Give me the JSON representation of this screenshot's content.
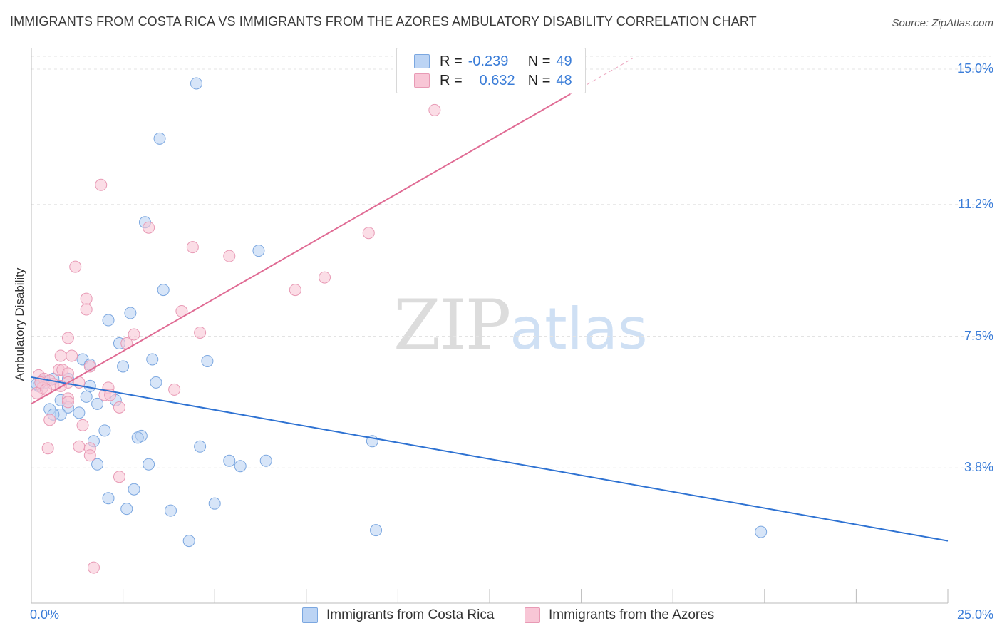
{
  "title": "IMMIGRANTS FROM COSTA RICA VS IMMIGRANTS FROM THE AZORES AMBULATORY DISABILITY CORRELATION CHART",
  "source": "Source: ZipAtlas.com",
  "watermark": {
    "zip": "ZIP",
    "atlas": "atlas"
  },
  "legend_top": {
    "rows": [
      {
        "r_label": "R = ",
        "r_value": "-0.239",
        "n_label": "N = ",
        "n_value": "49"
      },
      {
        "r_label": "R = ",
        "r_value": "0.632",
        "n_label": "N = ",
        "n_value": "48"
      }
    ]
  },
  "colors": {
    "blue_fill": "#bcd4f4",
    "blue_stroke": "#7ba7e0",
    "blue_line": "#2e72d2",
    "pink_fill": "#f8c6d6",
    "pink_stroke": "#e89ab5",
    "pink_line": "#e06b94",
    "grid": "#e3e3e3",
    "tick_text": "#3b7dd8"
  },
  "chart_data": {
    "type": "scatter",
    "title": "IMMIGRANTS FROM COSTA RICA VS IMMIGRANTS FROM THE AZORES AMBULATORY DISABILITY CORRELATION CHART",
    "xlabel": "",
    "ylabel": "Ambulatory Disability",
    "xlim": [
      0,
      25
    ],
    "ylim": [
      0,
      15.5
    ],
    "x_tick_labels": [
      {
        "value": 0,
        "label": "0.0%"
      },
      {
        "value": 25,
        "label": "25.0%"
      }
    ],
    "y_tick_labels": [
      {
        "value": 3.8,
        "label": "3.8%"
      },
      {
        "value": 7.5,
        "label": "7.5%"
      },
      {
        "value": 11.2,
        "label": "11.2%"
      },
      {
        "value": 15.0,
        "label": "15.0%"
      }
    ],
    "x_minor_ticks": [
      2.5,
      5,
      7.5,
      10,
      12.5,
      15,
      17.5,
      20,
      22.5,
      25
    ],
    "grid": true,
    "legend_position": "top-center",
    "series": [
      {
        "name": "Immigrants from Costa Rica",
        "color": "blue",
        "r": -0.239,
        "n": 49,
        "trend": {
          "x": [
            0,
            25
          ],
          "y": [
            6.35,
            1.75
          ]
        },
        "points": [
          [
            4.5,
            14.6
          ],
          [
            3.5,
            13.05
          ],
          [
            3.1,
            10.7
          ],
          [
            6.2,
            9.9
          ],
          [
            3.6,
            8.8
          ],
          [
            2.7,
            8.15
          ],
          [
            2.1,
            7.95
          ],
          [
            2.4,
            7.3
          ],
          [
            3.3,
            6.85
          ],
          [
            4.8,
            6.8
          ],
          [
            1.4,
            6.85
          ],
          [
            1.6,
            6.7
          ],
          [
            2.5,
            6.65
          ],
          [
            3.4,
            6.2
          ],
          [
            1.0,
            6.3
          ],
          [
            0.3,
            6.25
          ],
          [
            0.4,
            6.2
          ],
          [
            0.6,
            6.3
          ],
          [
            0.2,
            6.1
          ],
          [
            1.6,
            6.1
          ],
          [
            0.8,
            5.7
          ],
          [
            1.5,
            5.8
          ],
          [
            1.8,
            5.6
          ],
          [
            2.3,
            5.7
          ],
          [
            0.5,
            5.45
          ],
          [
            1.0,
            5.5
          ],
          [
            0.8,
            5.3
          ],
          [
            0.6,
            5.3
          ],
          [
            1.3,
            5.35
          ],
          [
            2.0,
            4.85
          ],
          [
            3.0,
            4.7
          ],
          [
            1.7,
            4.55
          ],
          [
            2.9,
            4.65
          ],
          [
            4.6,
            4.4
          ],
          [
            9.3,
            4.55
          ],
          [
            5.4,
            4.0
          ],
          [
            5.7,
            3.85
          ],
          [
            6.4,
            4.0
          ],
          [
            1.8,
            3.9
          ],
          [
            3.2,
            3.9
          ],
          [
            2.8,
            3.2
          ],
          [
            2.1,
            2.95
          ],
          [
            5.0,
            2.8
          ],
          [
            2.6,
            2.65
          ],
          [
            3.8,
            2.6
          ],
          [
            9.4,
            2.05
          ],
          [
            19.9,
            2.0
          ],
          [
            4.3,
            1.75
          ],
          [
            0.15,
            6.15
          ]
        ]
      },
      {
        "name": "Immigrants from the Azores",
        "color": "pink",
        "r": 0.632,
        "n": 48,
        "trend": {
          "x": [
            0,
            14.7
          ],
          "y": [
            5.6,
            14.3
          ]
        },
        "trend_dashed": {
          "x": [
            14.7,
            16.4
          ],
          "y": [
            14.3,
            15.3
          ]
        },
        "points": [
          [
            11.0,
            13.85
          ],
          [
            1.9,
            11.75
          ],
          [
            3.2,
            10.55
          ],
          [
            9.2,
            10.4
          ],
          [
            4.4,
            10.0
          ],
          [
            5.4,
            9.75
          ],
          [
            1.2,
            9.45
          ],
          [
            8.0,
            9.15
          ],
          [
            7.2,
            8.8
          ],
          [
            1.5,
            8.55
          ],
          [
            1.5,
            8.25
          ],
          [
            4.1,
            8.2
          ],
          [
            4.6,
            7.6
          ],
          [
            2.8,
            7.55
          ],
          [
            1.0,
            7.45
          ],
          [
            2.6,
            7.3
          ],
          [
            0.8,
            6.95
          ],
          [
            1.1,
            6.95
          ],
          [
            1.6,
            6.65
          ],
          [
            0.75,
            6.55
          ],
          [
            0.85,
            6.55
          ],
          [
            1.0,
            6.45
          ],
          [
            0.2,
            6.4
          ],
          [
            0.35,
            6.3
          ],
          [
            0.5,
            6.25
          ],
          [
            1.0,
            6.2
          ],
          [
            0.6,
            6.15
          ],
          [
            0.8,
            6.1
          ],
          [
            0.3,
            6.05
          ],
          [
            1.3,
            6.2
          ],
          [
            0.15,
            5.9
          ],
          [
            2.1,
            6.05
          ],
          [
            3.9,
            6.0
          ],
          [
            2.0,
            5.85
          ],
          [
            2.15,
            5.85
          ],
          [
            1.0,
            5.75
          ],
          [
            1.0,
            5.65
          ],
          [
            2.4,
            5.5
          ],
          [
            0.5,
            5.15
          ],
          [
            1.4,
            5.0
          ],
          [
            0.45,
            4.35
          ],
          [
            1.3,
            4.4
          ],
          [
            1.6,
            4.35
          ],
          [
            1.6,
            4.15
          ],
          [
            2.4,
            3.55
          ],
          [
            1.7,
            1.0
          ],
          [
            0.25,
            6.2
          ],
          [
            0.4,
            6.0
          ]
        ]
      }
    ]
  }
}
